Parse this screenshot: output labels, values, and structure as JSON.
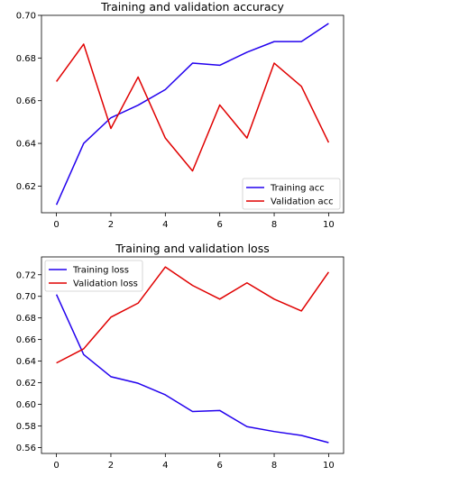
{
  "chart_data": [
    {
      "type": "line",
      "title": "Training and validation accuracy",
      "xlabel": "",
      "ylabel": "",
      "x": [
        0,
        1,
        2,
        3,
        4,
        5,
        6,
        7,
        8,
        9,
        10
      ],
      "xlim": [
        -0.55,
        10.55
      ],
      "ylim": [
        0.6075,
        0.7
      ],
      "x_ticks": [
        "0",
        "2",
        "4",
        "6",
        "8",
        "10"
      ],
      "y_ticks": [
        "0.62",
        "0.64",
        "0.66",
        "0.68",
        "0.70"
      ],
      "grid": false,
      "legend_position": "bottom-right",
      "series": [
        {
          "name": "Training acc",
          "color": "#2200ee",
          "values": [
            0.6112,
            0.64,
            0.652,
            0.6579,
            0.6652,
            0.6776,
            0.6766,
            0.6827,
            0.6877,
            0.6877,
            0.6962
          ]
        },
        {
          "name": "Validation acc",
          "color": "#e00000",
          "values": [
            0.669,
            0.6865,
            0.647,
            0.6711,
            0.6425,
            0.6271,
            0.658,
            0.6425,
            0.6776,
            0.6667,
            0.6404
          ]
        }
      ]
    },
    {
      "type": "line",
      "title": "Training and validation loss",
      "xlabel": "",
      "ylabel": "",
      "x": [
        0,
        1,
        2,
        3,
        4,
        5,
        6,
        7,
        8,
        9,
        10
      ],
      "xlim": [
        -0.55,
        10.55
      ],
      "ylim": [
        0.5545,
        0.7365
      ],
      "x_ticks": [
        "0",
        "2",
        "4",
        "6",
        "8",
        "10"
      ],
      "y_ticks": [
        "0.56",
        "0.58",
        "0.60",
        "0.62",
        "0.64",
        "0.66",
        "0.68",
        "0.70",
        "0.72"
      ],
      "grid": false,
      "legend_position": "top-left",
      "series": [
        {
          "name": "Training loss",
          "color": "#2200ee",
          "values": [
            0.7017,
            0.6461,
            0.6256,
            0.6195,
            0.6088,
            0.5933,
            0.5943,
            0.5793,
            0.5748,
            0.5712,
            0.5645
          ]
        },
        {
          "name": "Validation loss",
          "color": "#e00000",
          "values": [
            0.6383,
            0.6514,
            0.6807,
            0.6937,
            0.7272,
            0.7101,
            0.6974,
            0.7125,
            0.6974,
            0.6865,
            0.7225
          ]
        }
      ]
    }
  ]
}
